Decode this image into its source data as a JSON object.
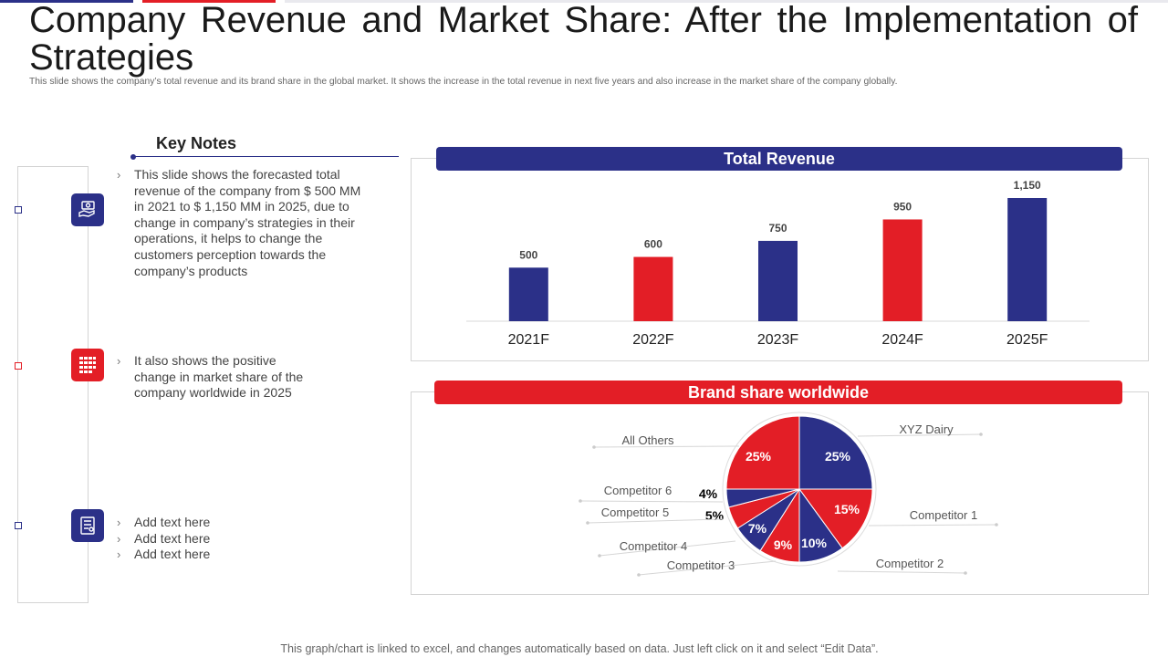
{
  "slide": {
    "title": "Company Revenue and Market Share: After the Implementation of Strategies",
    "subtitle": "This slide shows the company’s total revenue and its brand share in the global market. It shows the increase in the total revenue in next five years and also increase in the market share of the company globally.",
    "footer": "This graph/chart is linked to excel, and changes automatically based on data. Just left click on it and select “Edit Data”."
  },
  "key_notes": {
    "heading": "Key Notes",
    "notes": [
      {
        "lines": [
          "This slide shows the forecasted total revenue of the company from $ 500 MM in 2021 to $ 1,150 MM in 2025, due to change in company’s strategies in their operations, it helps to change the customers perception towards the company’s products"
        ],
        "icon": "money-hand-icon"
      },
      {
        "lines": [
          "It also shows the positive change in market share of the company worldwide in 2025"
        ],
        "icon": "building-grid-icon"
      },
      {
        "lines": [
          "Add text here",
          "Add text here",
          "Add text here"
        ],
        "icon": "document-icon"
      }
    ]
  },
  "colors": {
    "blue": "#2b3088",
    "red": "#e31e26"
  },
  "chart_data": [
    {
      "type": "bar",
      "title": "Total Revenue",
      "categories": [
        "2021F",
        "2022F",
        "2023F",
        "2024F",
        "2025F"
      ],
      "values": [
        500,
        600,
        750,
        950,
        1150
      ],
      "value_labels": [
        "500",
        "600",
        "750",
        "950",
        "1,150"
      ],
      "bar_colors": [
        "#2b3088",
        "#e31e26",
        "#2b3088",
        "#e31e26",
        "#2b3088"
      ],
      "xlabel": "",
      "ylabel": "",
      "ylim": [
        0,
        1150
      ]
    },
    {
      "type": "pie",
      "title": "Brand share worldwide",
      "slices": [
        {
          "label": "XYZ Dairy",
          "value": 25,
          "pct": "25%",
          "color": "#2b3088"
        },
        {
          "label": "Competitor 1",
          "value": 15,
          "pct": "15%",
          "color": "#e31e26"
        },
        {
          "label": "Competitor 2",
          "value": 10,
          "pct": "10%",
          "color": "#2b3088"
        },
        {
          "label": "Competitor 3",
          "value": 9,
          "pct": "9%",
          "color": "#e31e26"
        },
        {
          "label": "Competitor 4",
          "value": 7,
          "pct": "7%",
          "color": "#2b3088"
        },
        {
          "label": "Competitor 5",
          "value": 5,
          "pct": "5%",
          "color": "#e31e26"
        },
        {
          "label": "Competitor 6",
          "value": 4,
          "pct": "4%",
          "color": "#2b3088"
        },
        {
          "label": "All Others",
          "value": 25,
          "pct": "25%",
          "color": "#e31e26"
        }
      ]
    }
  ]
}
